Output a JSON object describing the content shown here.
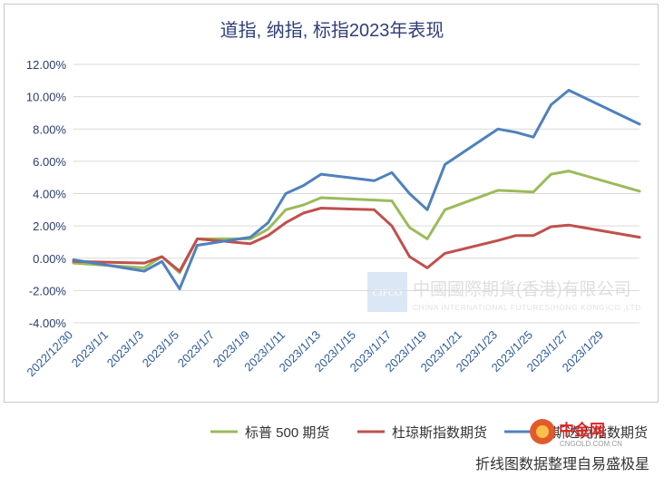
{
  "chart_data": {
    "type": "line",
    "title": "道指, 纳指, 标指2023年表现",
    "ylim": [
      -0.04,
      0.12
    ],
    "y_ticks": [
      "12.00%",
      "10.00%",
      "8.00%",
      "6.00%",
      "4.00%",
      "2.00%",
      "0.00%",
      "-2.00%",
      "-4.00%"
    ],
    "y_tick_values": [
      0.12,
      0.1,
      0.08,
      0.06,
      0.04,
      0.02,
      0.0,
      -0.02,
      -0.04
    ],
    "x_tick_labels": [
      "2022/12/30",
      "2023/1/1",
      "2023/1/3",
      "2023/1/5",
      "2023/1/7",
      "2023/1/9",
      "2023/1/11",
      "2023/1/13",
      "2023/1/15",
      "2023/1/17",
      "2023/1/19",
      "2023/1/21",
      "2023/1/23",
      "2023/1/25",
      "2023/1/27",
      "2023/1/29"
    ],
    "x_range": [
      "2022/12/30",
      "2023/1/31"
    ],
    "grid": "horizontal",
    "legend_position": "bottom",
    "series": [
      {
        "name": "标普 500 期货",
        "color": "#9bbb59",
        "points": [
          [
            "2022/12/30",
            -0.003
          ],
          [
            "2023/1/3",
            -0.006
          ],
          [
            "2023/1/4",
            0.001
          ],
          [
            "2023/1/5",
            -0.009
          ],
          [
            "2023/1/6",
            0.012
          ],
          [
            "2023/1/9",
            0.012
          ],
          [
            "2023/1/10",
            0.018
          ],
          [
            "2023/1/11",
            0.03
          ],
          [
            "2023/1/12",
            0.033
          ],
          [
            "2023/1/13",
            0.0375
          ],
          [
            "2023/1/16",
            0.036
          ],
          [
            "2023/1/17",
            0.0355
          ],
          [
            "2023/1/18",
            0.019
          ],
          [
            "2023/1/19",
            0.012
          ],
          [
            "2023/1/20",
            0.03
          ],
          [
            "2023/1/23",
            0.042
          ],
          [
            "2023/1/24",
            0.0415
          ],
          [
            "2023/1/25",
            0.041
          ],
          [
            "2023/1/26",
            0.052
          ],
          [
            "2023/1/27",
            0.054
          ],
          [
            "2023/1/31",
            0.0415
          ]
        ]
      },
      {
        "name": "杜琼斯指数期货",
        "color": "#c0504d",
        "points": [
          [
            "2022/12/30",
            -0.002
          ],
          [
            "2023/1/3",
            -0.003
          ],
          [
            "2023/1/4",
            0.001
          ],
          [
            "2023/1/5",
            -0.008
          ],
          [
            "2023/1/6",
            0.012
          ],
          [
            "2023/1/9",
            0.009
          ],
          [
            "2023/1/10",
            0.014
          ],
          [
            "2023/1/11",
            0.022
          ],
          [
            "2023/1/12",
            0.028
          ],
          [
            "2023/1/13",
            0.031
          ],
          [
            "2023/1/16",
            0.03
          ],
          [
            "2023/1/17",
            0.02
          ],
          [
            "2023/1/18",
            0.001
          ],
          [
            "2023/1/19",
            -0.006
          ],
          [
            "2023/1/20",
            0.003
          ],
          [
            "2023/1/23",
            0.011
          ],
          [
            "2023/1/24",
            0.014
          ],
          [
            "2023/1/25",
            0.014
          ],
          [
            "2023/1/26",
            0.0195
          ],
          [
            "2023/1/27",
            0.0205
          ],
          [
            "2023/1/31",
            0.013
          ]
        ]
      },
      {
        "name": "纳斯达克指数期货",
        "color": "#4f81bd",
        "points": [
          [
            "2022/12/30",
            -0.001
          ],
          [
            "2023/1/3",
            -0.008
          ],
          [
            "2023/1/4",
            -0.002
          ],
          [
            "2023/1/5",
            -0.019
          ],
          [
            "2023/1/6",
            0.008
          ],
          [
            "2023/1/9",
            0.013
          ],
          [
            "2023/1/10",
            0.022
          ],
          [
            "2023/1/11",
            0.04
          ],
          [
            "2023/1/12",
            0.045
          ],
          [
            "2023/1/13",
            0.052
          ],
          [
            "2023/1/16",
            0.048
          ],
          [
            "2023/1/17",
            0.053
          ],
          [
            "2023/1/18",
            0.04
          ],
          [
            "2023/1/19",
            0.03
          ],
          [
            "2023/1/20",
            0.058
          ],
          [
            "2023/1/23",
            0.08
          ],
          [
            "2023/1/24",
            0.078
          ],
          [
            "2023/1/25",
            0.075
          ],
          [
            "2023/1/26",
            0.095
          ],
          [
            "2023/1/27",
            0.104
          ],
          [
            "2023/1/31",
            0.083
          ]
        ]
      }
    ]
  },
  "legend": {
    "items": [
      "标普 500 期货",
      "杜琼斯指数期货",
      "纳斯达克指数期货"
    ]
  },
  "watermark": {
    "logo_text": "CIFCO",
    "company_cn": "中國國際期貨(香港)有限公司",
    "company_en": "CHINA INTERNATIONAL FUTURES(HONG KONG)CO.,LTD."
  },
  "site_logo": {
    "name": "中金网",
    "url_text": "CNGOLD.COM.CN"
  },
  "caption": "折线图数据整理自易盛极星"
}
